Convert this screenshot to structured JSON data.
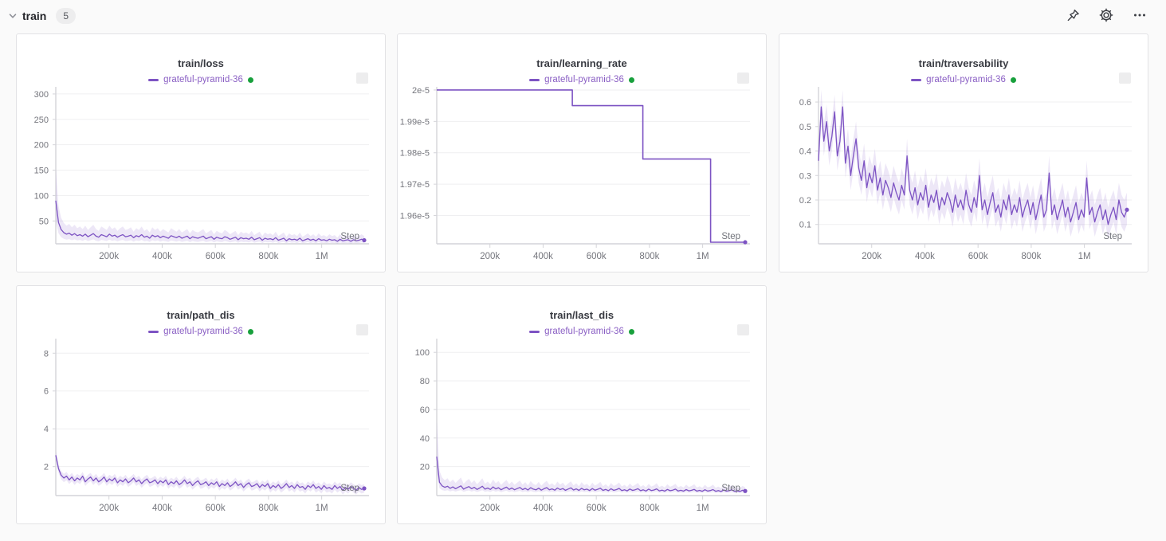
{
  "header": {
    "title": "train",
    "count": "5"
  },
  "run_name": "grateful-pyramid-36",
  "colors": {
    "line": "#7d53c3",
    "band": "rgba(125,85,199,0.14)",
    "legend_text": "#8a5fc4",
    "run_dot_green": "#18a03c",
    "grid": "#efeff1",
    "axis": "#d4d4d9",
    "tick_text": "#75767d",
    "step_label_text": "#73757c"
  },
  "x_axis": {
    "label": "Step",
    "max": 1160000,
    "ticks": [
      {
        "v": 200000,
        "label": "200k"
      },
      {
        "v": 400000,
        "label": "400k"
      },
      {
        "v": 600000,
        "label": "600k"
      },
      {
        "v": 800000,
        "label": "800k"
      },
      {
        "v": 1000000,
        "label": "1M"
      }
    ]
  },
  "chart_data": [
    {
      "type": "line",
      "title": "train/loss",
      "xlabel": "Step",
      "ylim": [
        5,
        314
      ],
      "yticks": [
        {
          "v": 50,
          "label": "50"
        },
        {
          "v": 100,
          "label": "100"
        },
        {
          "v": 150,
          "label": "150"
        },
        {
          "v": 200,
          "label": "200"
        },
        {
          "v": 250,
          "label": "250"
        },
        {
          "v": 300,
          "label": "300"
        }
      ],
      "x_end": 1160000,
      "band": {
        "mode": "mul",
        "upper": 1.7,
        "lower": 0.55
      },
      "values": [
        90,
        47,
        33,
        27,
        24,
        26,
        22,
        25,
        21,
        23,
        20,
        24,
        19,
        22,
        25,
        20,
        18,
        23,
        21,
        19,
        24,
        20,
        22,
        18,
        21,
        23,
        19,
        20,
        22,
        17,
        21,
        19,
        23,
        18,
        20,
        16,
        22,
        19,
        21,
        17,
        20,
        18,
        16,
        21,
        19,
        17,
        20,
        16,
        18,
        20,
        15,
        19,
        17,
        16,
        18,
        20,
        15,
        17,
        19,
        14,
        18,
        16,
        15,
        19,
        17,
        14,
        16,
        18,
        13,
        17,
        15,
        16,
        14,
        18,
        13,
        15,
        17,
        12,
        16,
        14,
        15,
        13,
        17,
        12,
        14,
        16,
        11,
        15,
        13,
        14,
        12,
        16,
        11,
        13,
        15,
        12,
        14,
        11,
        15,
        12,
        13,
        11,
        14,
        12,
        13,
        10,
        14,
        11,
        12,
        13,
        10,
        13,
        11,
        12,
        14,
        12
      ]
    },
    {
      "type": "step",
      "title": "train/learning_rate",
      "xlabel": "Step",
      "ylim": [
        1.951e-05,
        2.001e-05
      ],
      "yticks": [
        {
          "v": 2e-05,
          "label": "2e-5"
        },
        {
          "v": 1.99e-05,
          "label": "1.99e-5"
        },
        {
          "v": 1.98e-05,
          "label": "1.98e-5"
        },
        {
          "v": 1.97e-05,
          "label": "1.97e-5"
        },
        {
          "v": 1.96e-05,
          "label": "1.96e-5"
        }
      ],
      "points": [
        [
          0,
          2e-05
        ],
        [
          510000,
          2e-05
        ],
        [
          510000,
          1.995e-05
        ],
        [
          775000,
          1.995e-05
        ],
        [
          775000,
          1.978e-05
        ],
        [
          1030000,
          1.978e-05
        ],
        [
          1030000,
          1.9515e-05
        ],
        [
          1160000,
          1.9515e-05
        ]
      ]
    },
    {
      "type": "line",
      "title": "train/traversability",
      "xlabel": "Step",
      "ylim": [
        0.021,
        0.662
      ],
      "yticks": [
        {
          "v": 0.1,
          "label": "0.1"
        },
        {
          "v": 0.2,
          "label": "0.2"
        },
        {
          "v": 0.3,
          "label": "0.3"
        },
        {
          "v": 0.4,
          "label": "0.4"
        },
        {
          "v": 0.5,
          "label": "0.5"
        },
        {
          "v": 0.6,
          "label": "0.6"
        }
      ],
      "x_end": 1160000,
      "band": {
        "mode": "add",
        "upper": 0.07,
        "lower": 0.06
      },
      "values": [
        0.36,
        0.58,
        0.44,
        0.52,
        0.4,
        0.46,
        0.56,
        0.38,
        0.44,
        0.58,
        0.35,
        0.42,
        0.3,
        0.38,
        0.45,
        0.33,
        0.28,
        0.36,
        0.25,
        0.31,
        0.27,
        0.34,
        0.24,
        0.29,
        0.22,
        0.28,
        0.25,
        0.21,
        0.27,
        0.23,
        0.2,
        0.26,
        0.22,
        0.38,
        0.24,
        0.2,
        0.25,
        0.18,
        0.23,
        0.2,
        0.26,
        0.17,
        0.22,
        0.19,
        0.24,
        0.16,
        0.21,
        0.18,
        0.23,
        0.2,
        0.15,
        0.22,
        0.17,
        0.2,
        0.16,
        0.24,
        0.18,
        0.15,
        0.21,
        0.17,
        0.3,
        0.16,
        0.2,
        0.14,
        0.19,
        0.23,
        0.15,
        0.18,
        0.13,
        0.2,
        0.16,
        0.22,
        0.14,
        0.18,
        0.15,
        0.21,
        0.13,
        0.17,
        0.2,
        0.14,
        0.19,
        0.12,
        0.17,
        0.22,
        0.13,
        0.16,
        0.31,
        0.14,
        0.18,
        0.12,
        0.16,
        0.2,
        0.13,
        0.17,
        0.11,
        0.15,
        0.19,
        0.12,
        0.16,
        0.13,
        0.29,
        0.14,
        0.17,
        0.11,
        0.15,
        0.18,
        0.12,
        0.16,
        0.1,
        0.14,
        0.17,
        0.12,
        0.2,
        0.15,
        0.13,
        0.16
      ]
    },
    {
      "type": "line",
      "title": "train/path_dis",
      "xlabel": "Step",
      "ylim": [
        0.47,
        8.77
      ],
      "yticks": [
        {
          "v": 2,
          "label": "2"
        },
        {
          "v": 4,
          "label": "4"
        },
        {
          "v": 6,
          "label": "6"
        },
        {
          "v": 8,
          "label": "8"
        }
      ],
      "x_end": 1160000,
      "band": {
        "mode": "add",
        "upper": 0.22,
        "lower": 0.22
      },
      "values": [
        2.6,
        1.9,
        1.55,
        1.4,
        1.5,
        1.3,
        1.45,
        1.25,
        1.4,
        1.3,
        1.5,
        1.2,
        1.35,
        1.45,
        1.25,
        1.4,
        1.2,
        1.3,
        1.45,
        1.2,
        1.35,
        1.25,
        1.4,
        1.15,
        1.3,
        1.2,
        1.35,
        1.15,
        1.25,
        1.4,
        1.2,
        1.3,
        1.1,
        1.25,
        1.35,
        1.15,
        1.2,
        1.3,
        1.1,
        1.25,
        1.15,
        1.3,
        1.05,
        1.2,
        1.1,
        1.25,
        1.05,
        1.15,
        1.3,
        1.1,
        1.2,
        1.0,
        1.15,
        1.25,
        1.05,
        1.1,
        1.2,
        1.0,
        1.15,
        1.05,
        1.2,
        0.95,
        1.1,
        1.0,
        1.15,
        0.95,
        1.05,
        1.2,
        1.0,
        1.1,
        0.9,
        1.05,
        1.15,
        0.95,
        1.0,
        1.1,
        0.9,
        1.05,
        0.95,
        1.1,
        0.85,
        1.0,
        0.9,
        1.05,
        0.85,
        0.95,
        1.1,
        0.9,
        1.0,
        0.85,
        1.05,
        0.9,
        0.95,
        0.8,
        1.0,
        0.9,
        1.05,
        0.85,
        0.95,
        0.8,
        1.0,
        0.85,
        0.9,
        0.8,
        1.0,
        0.85,
        0.95,
        0.75,
        0.9,
        0.8,
        0.95,
        0.85,
        0.75,
        0.9,
        0.8,
        0.85
      ]
    },
    {
      "type": "line",
      "title": "train/last_dis",
      "xlabel": "Step",
      "ylim": [
        -0.3,
        109.6
      ],
      "yticks": [
        {
          "v": 20,
          "label": "20"
        },
        {
          "v": 40,
          "label": "40"
        },
        {
          "v": 60,
          "label": "60"
        },
        {
          "v": 80,
          "label": "80"
        },
        {
          "v": 100,
          "label": "100"
        }
      ],
      "x_end": 1160000,
      "band": {
        "mode": "mul",
        "upper": 1.9,
        "lower": 0.55
      },
      "values": [
        27,
        9,
        6.5,
        5.5,
        6.2,
        4.8,
        5.8,
        4.5,
        5.5,
        6.5,
        4.2,
        5.2,
        6,
        4.5,
        5.5,
        4,
        5,
        6.2,
        4.2,
        5,
        4,
        5.8,
        4.4,
        5.2,
        3.8,
        4.8,
        5.6,
        4,
        5,
        3.8,
        4.6,
        5.4,
        3.9,
        4.8,
        3.6,
        5.2,
        4.2,
        3.7,
        4.9,
        3.5,
        4.5,
        5.3,
        3.8,
        4.4,
        3.5,
        5,
        3.9,
        4.6,
        3.4,
        4.3,
        5.1,
        3.6,
        4.4,
        3.3,
        4.8,
        3.7,
        4.2,
        3.2,
        4.6,
        3.5,
        4.1,
        4.9,
        3.3,
        4,
        3.1,
        4.5,
        3.4,
        3.9,
        4.7,
        3.2,
        3.8,
        3,
        4.3,
        3.3,
        3.8,
        4.5,
        3.1,
        3.7,
        2.9,
        4.2,
        3.2,
        3.6,
        4.4,
        3,
        3.5,
        2.8,
        4,
        3.1,
        3.5,
        4.2,
        2.9,
        3.4,
        2.8,
        3.9,
        3,
        3.4,
        4,
        2.8,
        3.3,
        2.7,
        3.8,
        2.9,
        3.2,
        3.9,
        2.7,
        3.2,
        2.6,
        3.6,
        2.8,
        3.1,
        3.7,
        2.7,
        3,
        2.6,
        3.4,
        2.9
      ]
    }
  ]
}
